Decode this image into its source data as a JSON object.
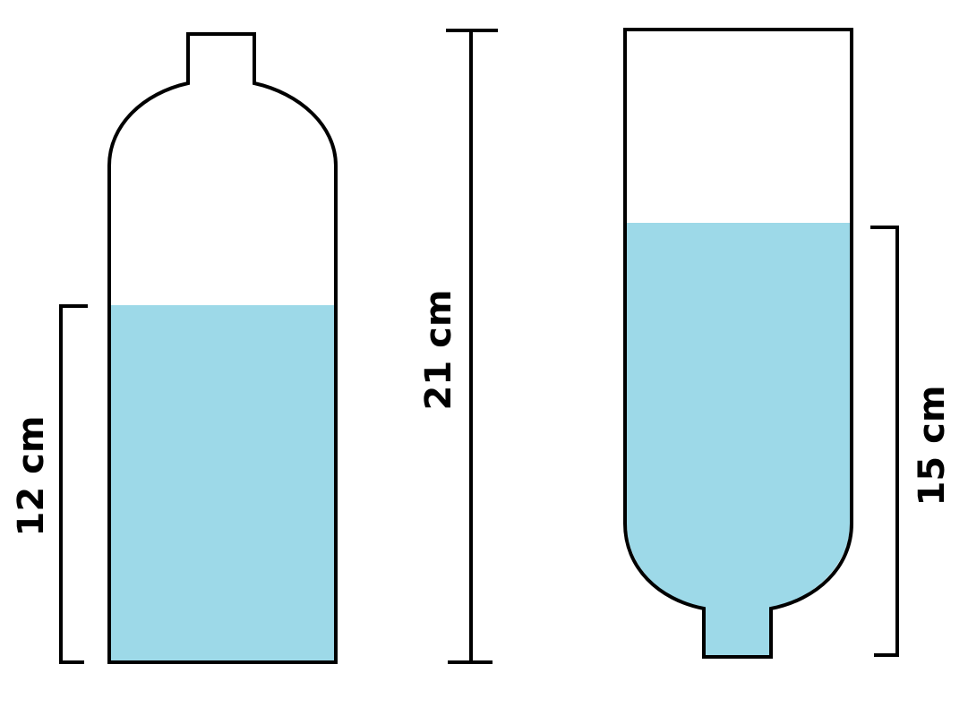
{
  "colors": {
    "water": "#9dd9e8",
    "outline": "#000000",
    "background": "#ffffff"
  },
  "upright_bottle": {
    "water_height_label": "12 cm"
  },
  "bottle_height": {
    "label": "21 cm"
  },
  "inverted_bottle": {
    "water_height_label": "15 cm"
  }
}
